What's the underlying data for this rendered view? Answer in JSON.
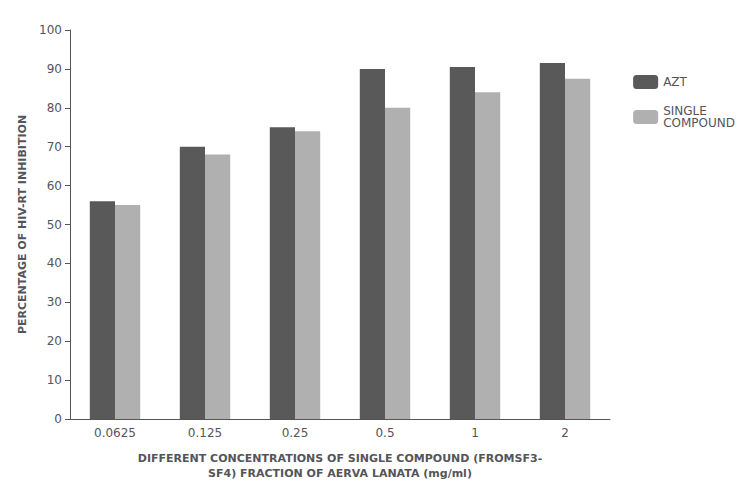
{
  "chart_data": {
    "type": "bar",
    "categories": [
      "0.0625",
      "0.125",
      "0.25",
      "0.5",
      "1",
      "2"
    ],
    "series": [
      {
        "name": "AZT",
        "color": "#595959",
        "values": [
          56,
          70,
          75,
          90,
          90.5,
          91.5
        ]
      },
      {
        "name": "SINGLE\nCOMPOUND",
        "color": "#b0b0b0",
        "values": [
          55,
          68,
          74,
          80,
          84,
          87.5
        ]
      }
    ],
    "ylabel": "PERCENTAGE OF HIV-RT INHIBITION",
    "xlabel": "DIFFERENT CONCENTRATIONS OF SINGLE COMPOUND (FROMSF3-\nSF4) FRACTION OF AERVA LANATA (mg/ml)",
    "ylim": [
      0,
      100
    ],
    "yticks": [
      0,
      10,
      20,
      30,
      40,
      50,
      60,
      70,
      80,
      90,
      100
    ],
    "grid": false,
    "legend": "right"
  }
}
